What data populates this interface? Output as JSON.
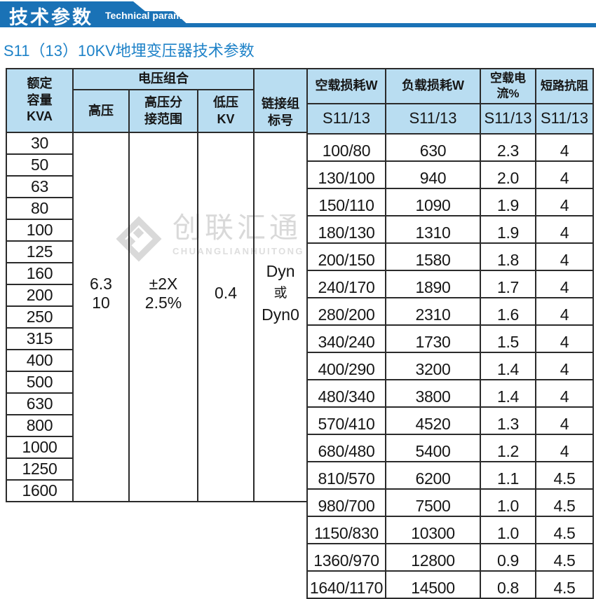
{
  "banner": {
    "title": "技术参数",
    "subtitle": "Technical parameter"
  },
  "page_subtitle": "S11（13）10KV地埋变压器技术参数",
  "watermark": {
    "name": "创联汇通",
    "name_en": "CHUANGLIANHUITONG"
  },
  "colors": {
    "banner_blue": "#1a72b6",
    "subtitle_blue": "#1e82c8",
    "header_bg": "#b9ddf1",
    "border": "#2b2b2b",
    "watermark_gray": "#d9d9d9"
  },
  "table": {
    "headers": {
      "capacity_lines": [
        "额定",
        "容量",
        "KVA"
      ],
      "voltage_group": "电压组合",
      "hv": "高压",
      "hv_tap_lines": [
        "高压分",
        "接范围"
      ],
      "lv_lines": [
        "低压",
        "KV"
      ],
      "vector_lines": [
        "链接组",
        "标号"
      ],
      "no_load_loss": "空载损耗W",
      "load_loss": "负载损耗W",
      "no_load_current": "空载电流%",
      "impedance": "短路抗阻",
      "series": "S11/13"
    },
    "merged": {
      "hv_lines": [
        "6.3",
        "10"
      ],
      "tap_lines": [
        "±2X",
        "2.5%"
      ],
      "lv": "0.4",
      "vector_lines": [
        "Dyn",
        "或",
        "Dyn0"
      ]
    },
    "rows": [
      {
        "kva": "30",
        "no_load_loss": "100/80",
        "load_loss": "630",
        "current": "2.3",
        "impedance": "4"
      },
      {
        "kva": "50",
        "no_load_loss": "130/100",
        "load_loss": "940",
        "current": "2.0",
        "impedance": "4"
      },
      {
        "kva": "63",
        "no_load_loss": "150/110",
        "load_loss": "1090",
        "current": "1.9",
        "impedance": "4"
      },
      {
        "kva": "80",
        "no_load_loss": "180/130",
        "load_loss": "1310",
        "current": "1.9",
        "impedance": "4"
      },
      {
        "kva": "100",
        "no_load_loss": "200/150",
        "load_loss": "1580",
        "current": "1.8",
        "impedance": "4"
      },
      {
        "kva": "125",
        "no_load_loss": "240/170",
        "load_loss": "1890",
        "current": "1.7",
        "impedance": "4"
      },
      {
        "kva": "160",
        "no_load_loss": "280/200",
        "load_loss": "2310",
        "current": "1.6",
        "impedance": "4"
      },
      {
        "kva": "200",
        "no_load_loss": "340/240",
        "load_loss": "1730",
        "current": "1.5",
        "impedance": "4"
      },
      {
        "kva": "250",
        "no_load_loss": "400/290",
        "load_loss": "3200",
        "current": "1.4",
        "impedance": "4"
      },
      {
        "kva": "315",
        "no_load_loss": "480/340",
        "load_loss": "3800",
        "current": "1.4",
        "impedance": "4"
      },
      {
        "kva": "400",
        "no_load_loss": "570/410",
        "load_loss": "4520",
        "current": "1.3",
        "impedance": "4"
      },
      {
        "kva": "500",
        "no_load_loss": "680/480",
        "load_loss": "5400",
        "current": "1.2",
        "impedance": "4"
      },
      {
        "kva": "630",
        "no_load_loss": "810/570",
        "load_loss": "6200",
        "current": "1.1",
        "impedance": "4.5"
      },
      {
        "kva": "800",
        "no_load_loss": "980/700",
        "load_loss": "7500",
        "current": "1.0",
        "impedance": "4.5"
      },
      {
        "kva": "1000",
        "no_load_loss": "1150/830",
        "load_loss": "10300",
        "current": "1.0",
        "impedance": "4.5"
      },
      {
        "kva": "1250",
        "no_load_loss": "1360/970",
        "load_loss": "12800",
        "current": "0.9",
        "impedance": "4.5"
      },
      {
        "kva": "1600",
        "no_load_loss": "1640/1170",
        "load_loss": "14500",
        "current": "0.8",
        "impedance": "4.5"
      }
    ]
  }
}
